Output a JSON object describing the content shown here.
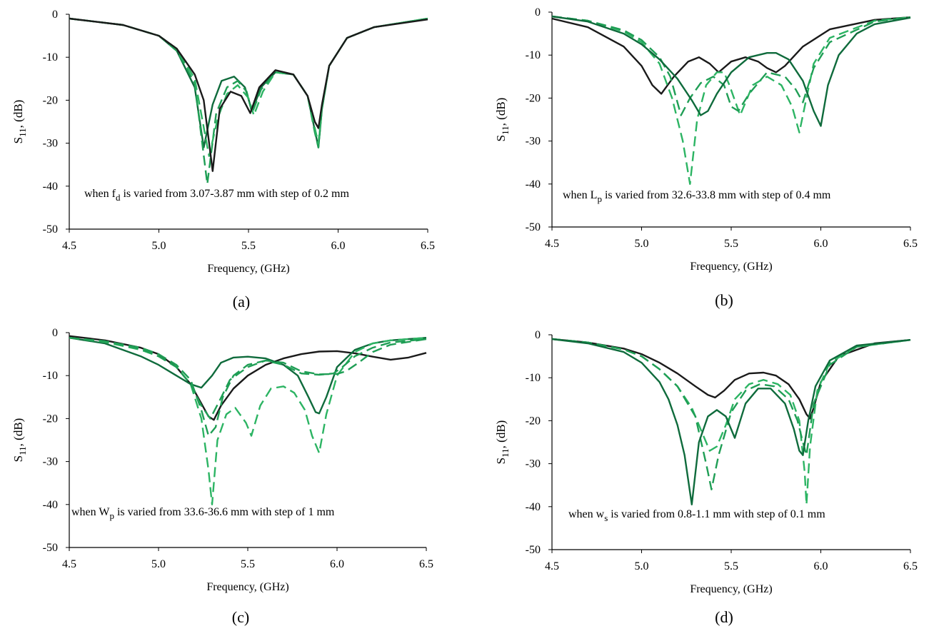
{
  "colors": {
    "black": "#1a1a1a",
    "dark_green": "#0f6b3c",
    "mid_green": "#1f9e55",
    "light_green": "#2cb463"
  },
  "chart_data": [
    {
      "type": "line",
      "caption": "(a)",
      "xlabel": "Frequency, (GHz)",
      "ylabel_main": "S",
      "ylabel_sub": "11",
      "ylabel_tail": ", (dB)",
      "xlim": [
        4.5,
        6.5
      ],
      "ylim": [
        -50,
        0
      ],
      "xticks": [
        "4.5",
        "5.0",
        "5.5",
        "6.0",
        "6.5"
      ],
      "yticks": [
        "0",
        "-10",
        "-20",
        "-30",
        "-40",
        "-50"
      ],
      "annotation": {
        "pre": "when f",
        "sub": "d",
        "post": "  is varied  from 3.07-3.87 mm with step of 0.2 mm"
      },
      "series": [
        {
          "color": "dark_green",
          "dash": "solid",
          "x": [
            4.5,
            4.8,
            5.0,
            5.1,
            5.2,
            5.25,
            5.3,
            5.35,
            5.42,
            5.48,
            5.52,
            5.57,
            5.65,
            5.75,
            5.83,
            5.87,
            5.89,
            5.91,
            5.95,
            6.05,
            6.2,
            6.5
          ],
          "y": [
            -1,
            -2.5,
            -5,
            -8.5,
            -17,
            -31,
            -21,
            -15.5,
            -14.5,
            -17,
            -22.5,
            -17,
            -13.5,
            -14,
            -19,
            -27,
            -31,
            -22,
            -12,
            -5.5,
            -3,
            -1
          ]
        },
        {
          "color": "mid_green",
          "dash": "dash",
          "x": [
            4.5,
            4.8,
            5.0,
            5.1,
            5.2,
            5.27,
            5.32,
            5.38,
            5.44,
            5.49,
            5.52,
            5.57,
            5.65,
            5.75,
            5.83,
            5.87,
            5.89,
            5.91,
            5.95,
            6.05,
            6.2,
            6.5
          ],
          "y": [
            -1,
            -2.5,
            -5,
            -8.5,
            -16,
            -39.5,
            -23,
            -17,
            -15.5,
            -18,
            -23,
            -17.5,
            -13.5,
            -14,
            -19,
            -27.5,
            -31,
            -22,
            -12,
            -5.5,
            -3,
            -1
          ]
        },
        {
          "color": "light_green",
          "dash": "dash",
          "x": [
            4.5,
            4.8,
            5.0,
            5.1,
            5.2,
            5.28,
            5.33,
            5.38,
            5.44,
            5.5,
            5.53,
            5.58,
            5.65,
            5.75,
            5.83,
            5.87,
            5.89,
            5.91,
            5.95,
            6.05,
            6.2,
            6.5
          ],
          "y": [
            -1,
            -2.5,
            -5,
            -8,
            -15,
            -33,
            -24,
            -18.5,
            -16.5,
            -19.5,
            -23.5,
            -18,
            -13.5,
            -14,
            -19,
            -26.5,
            -30,
            -21.5,
            -12,
            -5.5,
            -3,
            -1
          ]
        },
        {
          "color": "black",
          "dash": "solid",
          "x": [
            4.5,
            4.8,
            5.0,
            5.1,
            5.2,
            5.25,
            5.3,
            5.34,
            5.4,
            5.46,
            5.51,
            5.56,
            5.65,
            5.75,
            5.83,
            5.87,
            5.89,
            5.91,
            5.95,
            6.05,
            6.2,
            6.5
          ],
          "y": [
            -1,
            -2.5,
            -5,
            -8,
            -14,
            -20,
            -36.5,
            -22,
            -18,
            -19,
            -23,
            -17,
            -13,
            -14,
            -19,
            -25,
            -26.5,
            -21,
            -12,
            -5.5,
            -3,
            -1.2
          ]
        }
      ]
    },
    {
      "type": "line",
      "caption": "(b)",
      "xlabel": "Frequency, (GHz)",
      "ylabel_main": "S",
      "ylabel_sub": "11",
      "ylabel_tail": ", (dB)",
      "xlim": [
        4.5,
        6.5
      ],
      "ylim": [
        -50,
        0
      ],
      "xticks": [
        "4.5",
        "5.0",
        "5.5",
        "6.0",
        "6.5"
      ],
      "yticks": [
        "0",
        "-10",
        "-20",
        "-30",
        "-40",
        "-50"
      ],
      "annotation": {
        "pre": "when L",
        "sub": "p",
        "post": " is varied  from 32.6-33.8 mm with step of 0.4 mm"
      },
      "series": [
        {
          "color": "black",
          "dash": "solid",
          "x": [
            4.5,
            4.7,
            4.9,
            5.0,
            5.06,
            5.11,
            5.18,
            5.26,
            5.32,
            5.38,
            5.43,
            5.5,
            5.58,
            5.65,
            5.7,
            5.75,
            5.8,
            5.9,
            6.05,
            6.3,
            6.5
          ],
          "y": [
            -1.5,
            -3.5,
            -8,
            -12.5,
            -17,
            -19,
            -15,
            -11.5,
            -10.5,
            -12,
            -14,
            -11.5,
            -10.5,
            -11.5,
            -13,
            -14,
            -12.5,
            -8,
            -4,
            -1.8,
            -1.2
          ]
        },
        {
          "color": "light_green",
          "dash": "dash",
          "x": [
            4.5,
            4.7,
            4.9,
            5.0,
            5.1,
            5.17,
            5.23,
            5.27,
            5.31,
            5.36,
            5.42,
            5.46,
            5.49,
            5.55,
            5.62,
            5.7,
            5.78,
            5.84,
            5.88,
            5.91,
            5.96,
            6.05,
            6.3,
            6.5
          ],
          "y": [
            -1,
            -2,
            -4.5,
            -7,
            -12,
            -20,
            -30,
            -40,
            -25,
            -17,
            -14,
            -14,
            -17,
            -24,
            -17,
            -15,
            -17,
            -22,
            -28,
            -22,
            -12,
            -6,
            -2,
            -1.2
          ]
        },
        {
          "color": "mid_green",
          "dash": "dash",
          "x": [
            4.5,
            4.7,
            4.9,
            5.0,
            5.1,
            5.16,
            5.22,
            5.27,
            5.33,
            5.4,
            5.46,
            5.5,
            5.54,
            5.6,
            5.7,
            5.8,
            5.86,
            5.9,
            5.96,
            6.05,
            6.3,
            6.5
          ],
          "y": [
            -1,
            -2,
            -4.2,
            -6.5,
            -10.5,
            -15,
            -24,
            -20,
            -16.5,
            -15,
            -17,
            -22,
            -23,
            -19,
            -14,
            -15,
            -18,
            -21,
            -13,
            -7,
            -2.2,
            -1.2
          ]
        },
        {
          "color": "dark_green",
          "dash": "solid",
          "x": [
            4.5,
            4.7,
            4.9,
            5.0,
            5.1,
            5.2,
            5.28,
            5.33,
            5.37,
            5.42,
            5.5,
            5.6,
            5.7,
            5.75,
            5.82,
            5.9,
            5.96,
            6.0,
            6.04,
            6.1,
            6.2,
            6.3,
            6.5
          ],
          "y": [
            -1,
            -2.2,
            -5,
            -7.5,
            -11,
            -15.5,
            -20.5,
            -24,
            -23,
            -19,
            -14,
            -10.5,
            -9.5,
            -9.5,
            -11,
            -16,
            -23,
            -26.5,
            -17,
            -10,
            -5,
            -2.8,
            -1.3
          ]
        }
      ]
    },
    {
      "type": "line",
      "caption": "(c)",
      "xlabel": "Frequency, (GHz)",
      "ylabel_main": "S",
      "ylabel_sub": "11",
      "ylabel_tail": ", (dB)",
      "xlim": [
        4.5,
        6.5
      ],
      "ylim": [
        -50,
        0
      ],
      "xticks": [
        "4.5",
        "5.0",
        "5.5",
        "6.0",
        "6.5"
      ],
      "yticks": [
        "0",
        "-10",
        "-20",
        "-30",
        "-40",
        "-50"
      ],
      "annotation": {
        "pre": "when W",
        "sub": "p",
        "post": "  is varied  from 33.6-36.6 mm with step of 1 mm"
      },
      "series": [
        {
          "color": "black",
          "dash": "solid",
          "x": [
            4.5,
            4.7,
            4.9,
            5.0,
            5.1,
            5.18,
            5.24,
            5.28,
            5.31,
            5.35,
            5.42,
            5.5,
            5.6,
            5.7,
            5.8,
            5.9,
            6.0,
            6.1,
            6.2,
            6.3,
            6.4,
            6.5
          ],
          "y": [
            -0.8,
            -1.8,
            -3.5,
            -5,
            -8,
            -12,
            -16.5,
            -19.5,
            -20.3,
            -17,
            -13,
            -10,
            -7.5,
            -6,
            -5,
            -4.4,
            -4.3,
            -4.8,
            -5.6,
            -6.3,
            -5.8,
            -4.7
          ]
        },
        {
          "color": "dark_green",
          "dash": "solid",
          "x": [
            4.5,
            4.7,
            4.9,
            5.0,
            5.1,
            5.18,
            5.24,
            5.3,
            5.35,
            5.42,
            5.5,
            5.6,
            5.7,
            5.78,
            5.84,
            5.88,
            5.9,
            5.94,
            6.0,
            6.1,
            6.2,
            6.3,
            6.5
          ],
          "y": [
            -1.2,
            -2.5,
            -5.5,
            -7.5,
            -10,
            -12,
            -12.8,
            -10,
            -7,
            -5.8,
            -5.6,
            -6,
            -7.5,
            -10,
            -15,
            -18.5,
            -18.8,
            -15,
            -8,
            -4,
            -2.5,
            -1.8,
            -1.2
          ]
        },
        {
          "color": "light_green",
          "dash": "dash",
          "x": [
            4.5,
            4.7,
            4.9,
            5.0,
            5.1,
            5.18,
            5.24,
            5.28,
            5.3,
            5.33,
            5.38,
            5.43,
            5.49,
            5.52,
            5.57,
            5.63,
            5.7,
            5.76,
            5.82,
            5.86,
            5.9,
            5.94,
            6.0,
            6.1,
            6.2,
            6.3,
            6.5
          ],
          "y": [
            -1.2,
            -2.2,
            -4,
            -5.5,
            -8,
            -12,
            -20,
            -32,
            -40,
            -25,
            -19,
            -17.5,
            -21,
            -24,
            -17,
            -13,
            -12.5,
            -14,
            -18,
            -24,
            -28,
            -19,
            -10,
            -4.5,
            -2.5,
            -1.8,
            -1.2
          ]
        },
        {
          "color": "mid_green",
          "dash": "dash",
          "x": [
            4.5,
            4.7,
            4.9,
            5.0,
            5.1,
            5.18,
            5.24,
            5.28,
            5.32,
            5.36,
            5.42,
            5.5,
            5.6,
            5.7,
            5.8,
            5.9,
            5.98,
            6.03,
            6.1,
            6.2,
            6.3,
            6.5
          ],
          "y": [
            -1.2,
            -2,
            -3.5,
            -5,
            -7.5,
            -11,
            -18,
            -24,
            -22,
            -15,
            -10,
            -7.5,
            -6.5,
            -7.5,
            -9.5,
            -9.8,
            -9.5,
            -8,
            -5.5,
            -3.5,
            -2.3,
            -1.5
          ]
        },
        {
          "color": "mid_green",
          "dash": "dash",
          "x": [
            4.5,
            4.7,
            4.9,
            5.0,
            5.1,
            5.18,
            5.24,
            5.29,
            5.34,
            5.4,
            5.5,
            5.6,
            5.7,
            5.8,
            5.9,
            6.0,
            6.05,
            6.12,
            6.2,
            6.3,
            6.5
          ],
          "y": [
            -1.2,
            -2,
            -3.8,
            -5.5,
            -8,
            -12,
            -17,
            -20,
            -16,
            -11,
            -8,
            -6.5,
            -7,
            -9,
            -9.7,
            -9.6,
            -9,
            -7,
            -4.5,
            -2.8,
            -1.5
          ]
        }
      ]
    },
    {
      "type": "line",
      "caption": "(d)",
      "xlabel": "Frequency, (GHz)",
      "ylabel_main": "S",
      "ylabel_sub": "11",
      "ylabel_tail": ", (dB)",
      "xlim": [
        4.5,
        6.5
      ],
      "ylim": [
        -50,
        0
      ],
      "xticks": [
        "4.5",
        "5.0",
        "5.5",
        "6.0",
        "6.5"
      ],
      "yticks": [
        "0",
        "-10",
        "-20",
        "-30",
        "-40",
        "-50"
      ],
      "annotation": {
        "pre": "when w",
        "sub": "s",
        "post": "  is varied  from 0.8-1.1 mm with step of 0.1 mm"
      },
      "series": [
        {
          "color": "black",
          "dash": "solid",
          "x": [
            4.5,
            4.7,
            4.9,
            5.0,
            5.1,
            5.2,
            5.3,
            5.37,
            5.41,
            5.46,
            5.52,
            5.6,
            5.68,
            5.75,
            5.82,
            5.88,
            5.92,
            5.94,
            5.96,
            6.0,
            6.1,
            6.3,
            6.5
          ],
          "y": [
            -1,
            -1.8,
            -3.2,
            -4.5,
            -6.5,
            -9,
            -12,
            -14,
            -14.6,
            -13,
            -10.5,
            -9,
            -8.8,
            -9.5,
            -11.5,
            -15,
            -18.5,
            -19.5,
            -17,
            -11,
            -5,
            -2,
            -1.2
          ]
        },
        {
          "color": "light_green",
          "dash": "dash",
          "x": [
            4.5,
            4.7,
            4.9,
            5.0,
            5.1,
            5.2,
            5.28,
            5.34,
            5.38,
            5.42,
            5.47,
            5.52,
            5.6,
            5.68,
            5.76,
            5.83,
            5.88,
            5.91,
            5.92,
            5.94,
            5.98,
            6.05,
            6.2,
            6.5
          ],
          "y": [
            -1,
            -1.8,
            -3.4,
            -5,
            -8,
            -12,
            -17,
            -23,
            -27,
            -26,
            -21,
            -15,
            -11.5,
            -10.5,
            -11.5,
            -14,
            -20,
            -32,
            -39.5,
            -26,
            -13,
            -6.5,
            -2.8,
            -1.2
          ]
        },
        {
          "color": "mid_green",
          "dash": "dash",
          "x": [
            4.5,
            4.7,
            4.9,
            5.0,
            5.1,
            5.2,
            5.3,
            5.36,
            5.39,
            5.43,
            5.5,
            5.58,
            5.66,
            5.74,
            5.82,
            5.87,
            5.9,
            5.92,
            5.96,
            6.05,
            6.2,
            6.5
          ],
          "y": [
            -1,
            -1.8,
            -3.4,
            -5,
            -8,
            -12,
            -19,
            -30,
            -36,
            -28,
            -18,
            -13,
            -11.5,
            -12,
            -15,
            -20,
            -25,
            -28,
            -16,
            -7,
            -2.8,
            -1.2
          ]
        },
        {
          "color": "dark_green",
          "dash": "solid",
          "x": [
            4.5,
            4.7,
            4.9,
            5.0,
            5.1,
            5.15,
            5.2,
            5.24,
            5.28,
            5.32,
            5.37,
            5.42,
            5.47,
            5.52,
            5.58,
            5.65,
            5.72,
            5.8,
            5.85,
            5.88,
            5.9,
            5.93,
            5.97,
            6.05,
            6.2,
            6.5
          ],
          "y": [
            -1,
            -2,
            -4,
            -6.5,
            -11,
            -15,
            -21,
            -28,
            -39.5,
            -25,
            -19,
            -17.5,
            -19,
            -24,
            -16,
            -12.5,
            -12.5,
            -16,
            -22,
            -27,
            -28,
            -20,
            -12,
            -6,
            -2.5,
            -1.2
          ]
        }
      ]
    }
  ]
}
